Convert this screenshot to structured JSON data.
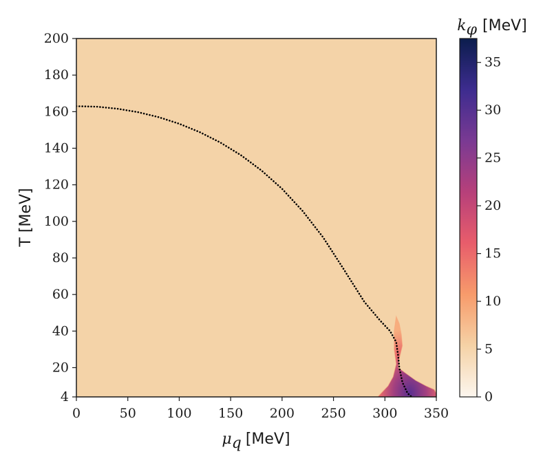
{
  "chart_data": {
    "type": "heatmap",
    "xlabel": {
      "symbol": "μ",
      "subscript": "q",
      "unit": "[MeV]"
    },
    "ylabel": "T [MeV]",
    "xlim": [
      0,
      350
    ],
    "ylim": [
      4,
      200
    ],
    "xticks": [
      0,
      50,
      100,
      150,
      200,
      250,
      300,
      350
    ],
    "yticks": [
      4,
      20,
      40,
      60,
      80,
      100,
      120,
      140,
      160,
      180,
      200
    ],
    "colorbar": {
      "label": {
        "symbol": "k",
        "subscript": "φ",
        "unit": "[MeV]"
      },
      "range": [
        0,
        37.5
      ],
      "ticks": [
        0,
        5,
        10,
        15,
        20,
        25,
        30,
        35
      ],
      "colormap": "magma_r",
      "stops": [
        "#fcf6ee",
        "#f5d2a6",
        "#f79b6b",
        "#e85d6b",
        "#b7407a",
        "#7a3a93",
        "#3d2c8f",
        "#0b1d4d"
      ]
    },
    "background_value": 5,
    "background_color": "#f4d3a8",
    "phase_boundary": {
      "style": "dotted",
      "color": "#000000",
      "points": [
        [
          0,
          163
        ],
        [
          20,
          162.7
        ],
        [
          40,
          161.6
        ],
        [
          60,
          159.7
        ],
        [
          80,
          157.0
        ],
        [
          100,
          153.4
        ],
        [
          120,
          148.8
        ],
        [
          140,
          143.1
        ],
        [
          160,
          136.2
        ],
        [
          180,
          127.8
        ],
        [
          200,
          117.8
        ],
        [
          220,
          105.7
        ],
        [
          240,
          91.2
        ],
        [
          260,
          73.8
        ],
        [
          280,
          56.0
        ],
        [
          295,
          46.0
        ],
        [
          305,
          40.0
        ],
        [
          311,
          34.0
        ],
        [
          313,
          26.0
        ],
        [
          314,
          20.0
        ],
        [
          317,
          12.0
        ],
        [
          322,
          6.0
        ],
        [
          326,
          4.0
        ]
      ]
    },
    "regions": [
      {
        "description_value_range": [
          5,
          37
        ],
        "outline": [
          [
            311,
            48
          ],
          [
            314,
            44
          ],
          [
            316,
            38
          ],
          [
            317,
            32
          ],
          [
            314,
            25
          ],
          [
            313,
            20
          ],
          [
            320,
            17
          ],
          [
            330,
            13
          ],
          [
            340,
            10
          ],
          [
            348,
            8
          ],
          [
            350,
            6
          ],
          [
            350,
            4
          ],
          [
            293,
            4
          ],
          [
            298,
            7
          ],
          [
            303,
            10
          ],
          [
            308,
            15
          ],
          [
            311,
            22
          ],
          [
            309,
            30
          ],
          [
            309,
            40
          ]
        ]
      }
    ]
  }
}
